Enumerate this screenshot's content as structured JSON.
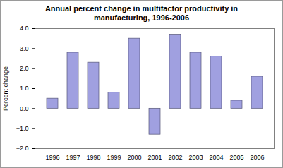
{
  "chart_data": {
    "type": "bar",
    "title": "Annual percent change in multifactor productivity in manufacturing, 1996-2006",
    "y_label": "Percent change",
    "categories": [
      "1996",
      "1997",
      "1998",
      "1999",
      "2000",
      "2001",
      "2002",
      "2003",
      "2004",
      "2005",
      "2006"
    ],
    "values": [
      0.5,
      2.8,
      2.3,
      0.8,
      3.5,
      -1.3,
      3.7,
      2.8,
      2.6,
      0.4,
      1.6
    ],
    "color": "#a0a0e0",
    "ylim": [
      -2,
      4
    ],
    "yticks": [
      -2,
      -1,
      0,
      1,
      2,
      3,
      4
    ],
    "grid": false
  }
}
